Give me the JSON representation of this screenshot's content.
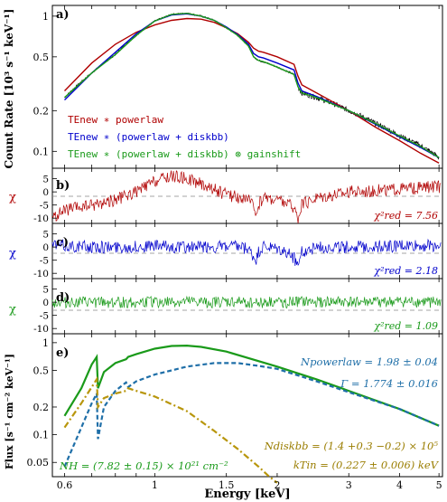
{
  "panels": {
    "a": {
      "label": "a)",
      "ylabel": "Count Rate [10³ s⁻¹ keV⁻¹]",
      "yticks": [
        "0.1",
        "0.2",
        "0.5",
        "1"
      ],
      "legend": [
        {
          "text": "TEnew ∗ powerlaw",
          "color": "#b00000"
        },
        {
          "text": "TEnew ∗ (powerlaw + diskbb)",
          "color": "#0000cc"
        },
        {
          "text": "TEnew ∗ (powerlaw + diskbb) ⊗ gainshift",
          "color": "#1a9a1a"
        }
      ]
    },
    "b": {
      "label": "b)",
      "ylabel": "χ",
      "stat": "χ²red = 7.56",
      "color": "#b00000",
      "yticks": [
        "5",
        "0",
        "-5",
        "-10"
      ]
    },
    "c": {
      "label": "c)",
      "ylabel": "χ",
      "stat": "χ²red = 2.18",
      "color": "#0000cc",
      "yticks": [
        "5",
        "0",
        "-5",
        "-10"
      ]
    },
    "d": {
      "label": "d)",
      "ylabel": "χ",
      "stat": "χ²red = 1.09",
      "color": "#1a9a1a",
      "yticks": [
        "5",
        "0",
        "-5",
        "-10"
      ]
    },
    "e": {
      "label": "e)",
      "ylabel": "Flux [s⁻¹ cm⁻² keV⁻¹]",
      "yticks": [
        "0.05",
        "0.1",
        "0.2",
        "0.5",
        "1"
      ],
      "ann_npow": "Npowerlaw = 1.98 ± 0.04",
      "ann_gamma": "Γ = 1.774 ± 0.016",
      "ann_ndisk": "Ndiskbb = (1.4 +0.3 −0.2) × 10⁵",
      "ann_ktin": "kTin = (0.227 ± 0.006) keV",
      "ann_nh": "NH = (7.82 ± 0.15) × 10²¹ cm⁻²"
    }
  },
  "xaxis": {
    "label": "Energy [keV]",
    "ticks": [
      "0.6",
      "1",
      "1.5",
      "2",
      "3",
      "4",
      "5"
    ]
  },
  "chart_data": [
    {
      "type": "line",
      "panel": "a",
      "xscale": "log",
      "yscale": "log",
      "xlim": [
        0.56,
        5.1
      ],
      "ylim": [
        0.075,
        1.2
      ],
      "ylabel": "Count Rate [10³ s⁻¹ keV⁻¹]",
      "series": [
        {
          "name": "data",
          "color": "#000000",
          "x": [
            0.6,
            0.7,
            0.8,
            0.9,
            1.0,
            1.1,
            1.2,
            1.3,
            1.4,
            1.5,
            1.6,
            1.7,
            1.75,
            1.8,
            1.85,
            2.0,
            2.2,
            2.25,
            2.3,
            2.5,
            3.0,
            3.5,
            4.0,
            4.5,
            5.0
          ],
          "y": [
            0.25,
            0.38,
            0.52,
            0.72,
            0.92,
            1.03,
            1.05,
            1.0,
            0.93,
            0.82,
            0.72,
            0.6,
            0.5,
            0.47,
            0.46,
            0.42,
            0.37,
            0.3,
            0.27,
            0.25,
            0.2,
            0.16,
            0.13,
            0.11,
            0.09
          ]
        },
        {
          "name": "TEnew ∗ powerlaw",
          "color": "#b00000",
          "x": [
            0.6,
            0.7,
            0.8,
            0.9,
            1.0,
            1.1,
            1.2,
            1.3,
            1.4,
            1.5,
            1.6,
            1.7,
            1.75,
            1.8,
            1.85,
            2.0,
            2.2,
            2.25,
            2.3,
            2.5,
            3.0,
            3.5,
            4.0,
            4.5,
            5.0
          ],
          "y": [
            0.28,
            0.45,
            0.62,
            0.76,
            0.86,
            0.93,
            0.96,
            0.95,
            0.9,
            0.82,
            0.74,
            0.64,
            0.58,
            0.55,
            0.54,
            0.5,
            0.44,
            0.36,
            0.31,
            0.27,
            0.2,
            0.15,
            0.12,
            0.097,
            0.082
          ]
        },
        {
          "name": "TEnew ∗ (powerlaw + diskbb)",
          "color": "#0000cc",
          "x": [
            0.6,
            0.7,
            0.8,
            0.9,
            1.0,
            1.1,
            1.2,
            1.3,
            1.4,
            1.5,
            1.6,
            1.7,
            1.75,
            1.8,
            1.85,
            2.0,
            2.2,
            2.25,
            2.3,
            2.5,
            3.0,
            3.5,
            4.0,
            4.5,
            5.0
          ],
          "y": [
            0.24,
            0.38,
            0.54,
            0.74,
            0.92,
            1.02,
            1.04,
            1.0,
            0.93,
            0.83,
            0.73,
            0.62,
            0.53,
            0.5,
            0.49,
            0.45,
            0.4,
            0.32,
            0.28,
            0.255,
            0.2,
            0.158,
            0.128,
            0.107,
            0.09
          ]
        },
        {
          "name": "TEnew ∗ (powerlaw + diskbb) ⊗ gainshift",
          "color": "#1a9a1a",
          "x": [
            0.6,
            0.7,
            0.8,
            0.9,
            1.0,
            1.1,
            1.2,
            1.3,
            1.4,
            1.5,
            1.6,
            1.7,
            1.75,
            1.8,
            1.85,
            2.0,
            2.2,
            2.25,
            2.3,
            2.5,
            3.0,
            3.5,
            4.0,
            4.5,
            5.0
          ],
          "y": [
            0.25,
            0.38,
            0.52,
            0.72,
            0.92,
            1.03,
            1.05,
            1.0,
            0.93,
            0.82,
            0.72,
            0.6,
            0.5,
            0.47,
            0.46,
            0.42,
            0.37,
            0.3,
            0.27,
            0.25,
            0.2,
            0.16,
            0.13,
            0.109,
            0.09
          ]
        }
      ]
    },
    {
      "type": "line",
      "panel": "b",
      "xscale": "log",
      "ylim": [
        -12,
        9
      ],
      "ylabel": "χ",
      "series": [
        {
          "name": "residuals",
          "color": "#b00000",
          "x": [
            0.56,
            0.6,
            0.7,
            0.8,
            0.9,
            1.0,
            1.1,
            1.2,
            1.3,
            1.4,
            1.5,
            1.6,
            1.7,
            1.75,
            1.78,
            1.8,
            1.85,
            2.0,
            2.1,
            2.2,
            2.25,
            2.3,
            2.5,
            3.0,
            4.0,
            5.0
          ],
          "y": [
            -10,
            -7,
            -5,
            -3,
            0,
            4,
            6,
            5,
            3,
            1,
            -1,
            -2,
            -3,
            -6,
            -8,
            -5,
            -2,
            -3,
            -4,
            -6,
            -10,
            -5,
            -2,
            0,
            1,
            2
          ]
        }
      ]
    },
    {
      "type": "line",
      "panel": "c",
      "xscale": "log",
      "ylim": [
        -12,
        9
      ],
      "ylabel": "χ",
      "series": [
        {
          "name": "residuals",
          "color": "#0000cc",
          "x": [
            0.56,
            0.6,
            0.7,
            0.8,
            0.9,
            1.0,
            1.1,
            1.2,
            1.3,
            1.4,
            1.5,
            1.6,
            1.7,
            1.75,
            1.78,
            1.8,
            1.85,
            2.0,
            2.1,
            2.2,
            2.25,
            2.3,
            2.5,
            3.0,
            4.0,
            5.0
          ],
          "y": [
            1,
            0.5,
            0,
            0,
            0,
            0.5,
            0,
            0,
            0,
            0,
            0,
            0,
            -1,
            -4,
            -5,
            -2,
            0,
            -1,
            -2,
            -4,
            -7,
            -2,
            0,
            0,
            0.5,
            0.5
          ]
        }
      ]
    },
    {
      "type": "line",
      "panel": "d",
      "xscale": "log",
      "ylim": [
        -12,
        9
      ],
      "ylabel": "χ",
      "series": [
        {
          "name": "residuals",
          "color": "#1a9a1a",
          "x": [
            0.56,
            0.6,
            0.7,
            0.8,
            0.9,
            1.0,
            1.2,
            1.5,
            1.8,
            2.0,
            2.2,
            2.5,
            3.0,
            4.0,
            5.0
          ],
          "y": [
            0,
            0,
            0,
            0,
            0,
            0,
            0,
            0,
            0,
            0,
            0,
            0,
            0,
            0,
            0
          ]
        }
      ]
    },
    {
      "type": "line",
      "panel": "e",
      "xscale": "log",
      "yscale": "log",
      "xlim": [
        0.56,
        5.1
      ],
      "ylim": [
        0.035,
        1.25
      ],
      "ylabel": "Flux [s⁻¹ cm⁻² keV⁻¹]",
      "series": [
        {
          "name": "total",
          "color": "#1a9a1a",
          "dash": "solid",
          "x": [
            0.6,
            0.66,
            0.7,
            0.72,
            0.725,
            0.75,
            0.8,
            0.85,
            0.86,
            0.9,
            1.0,
            1.1,
            1.2,
            1.3,
            1.5,
            2.0,
            2.5,
            3.0,
            4.0,
            5.0
          ],
          "y": [
            0.16,
            0.32,
            0.58,
            0.7,
            0.32,
            0.48,
            0.6,
            0.66,
            0.7,
            0.75,
            0.86,
            0.92,
            0.93,
            0.9,
            0.8,
            0.55,
            0.4,
            0.3,
            0.19,
            0.125
          ]
        },
        {
          "name": "powerlaw",
          "color": "#1f6fa8",
          "dash": "dashed",
          "x": [
            0.6,
            0.66,
            0.7,
            0.72,
            0.725,
            0.75,
            0.8,
            0.85,
            0.86,
            0.9,
            1.0,
            1.2,
            1.4,
            1.6,
            1.8,
            2.0,
            2.5,
            3.0,
            4.0,
            5.0
          ],
          "y": [
            0.045,
            0.12,
            0.22,
            0.28,
            0.09,
            0.2,
            0.3,
            0.37,
            0.33,
            0.38,
            0.45,
            0.55,
            0.6,
            0.6,
            0.56,
            0.52,
            0.38,
            0.29,
            0.19,
            0.125
          ]
        },
        {
          "name": "diskbb",
          "color": "#b8960c",
          "dash": "dashdot",
          "x": [
            0.6,
            0.66,
            0.7,
            0.72,
            0.725,
            0.75,
            0.8,
            0.85,
            0.86,
            0.9,
            1.0,
            1.2,
            1.4,
            1.6,
            1.8,
            1.9,
            2.0
          ],
          "y": [
            0.12,
            0.22,
            0.33,
            0.4,
            0.2,
            0.25,
            0.28,
            0.3,
            0.32,
            0.3,
            0.26,
            0.18,
            0.11,
            0.07,
            0.045,
            0.036,
            0.03
          ]
        }
      ]
    }
  ]
}
